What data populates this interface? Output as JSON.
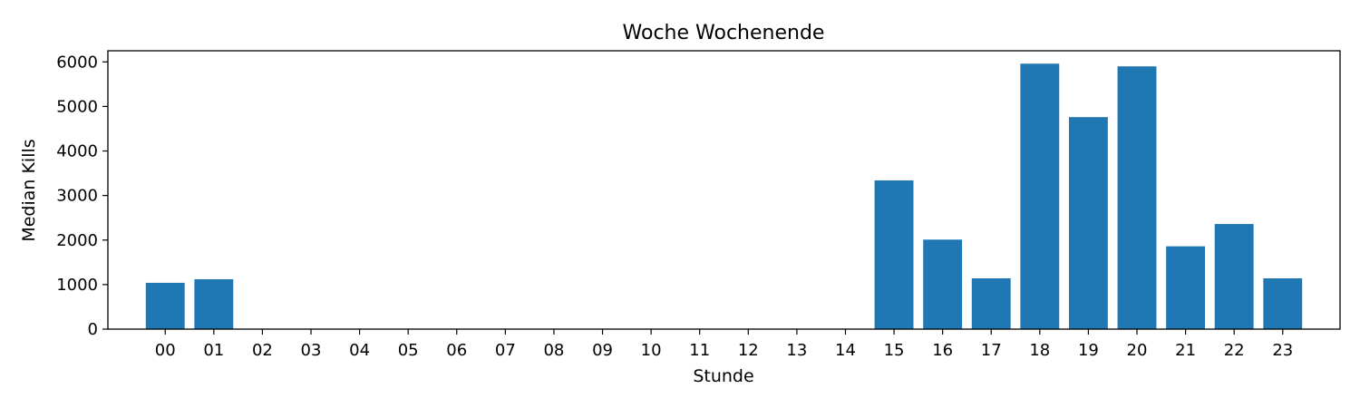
{
  "chart_data": {
    "type": "bar",
    "title": "Woche Wochenende",
    "xlabel": "Stunde",
    "ylabel": "Median Kills",
    "categories": [
      "00",
      "01",
      "02",
      "03",
      "04",
      "05",
      "06",
      "07",
      "08",
      "09",
      "10",
      "11",
      "12",
      "13",
      "14",
      "15",
      "16",
      "17",
      "18",
      "19",
      "20",
      "21",
      "22",
      "23"
    ],
    "values": [
      1040,
      1120,
      0,
      0,
      0,
      10,
      0,
      0,
      0,
      0,
      0,
      0,
      0,
      0,
      0,
      3340,
      2010,
      1140,
      5960,
      4760,
      5900,
      1860,
      2360,
      1140
    ],
    "ylim": [
      0,
      6250
    ],
    "yticks": [
      0,
      1000,
      2000,
      3000,
      4000,
      5000,
      6000
    ],
    "grid": false,
    "bar_color": "#1f77b4"
  }
}
